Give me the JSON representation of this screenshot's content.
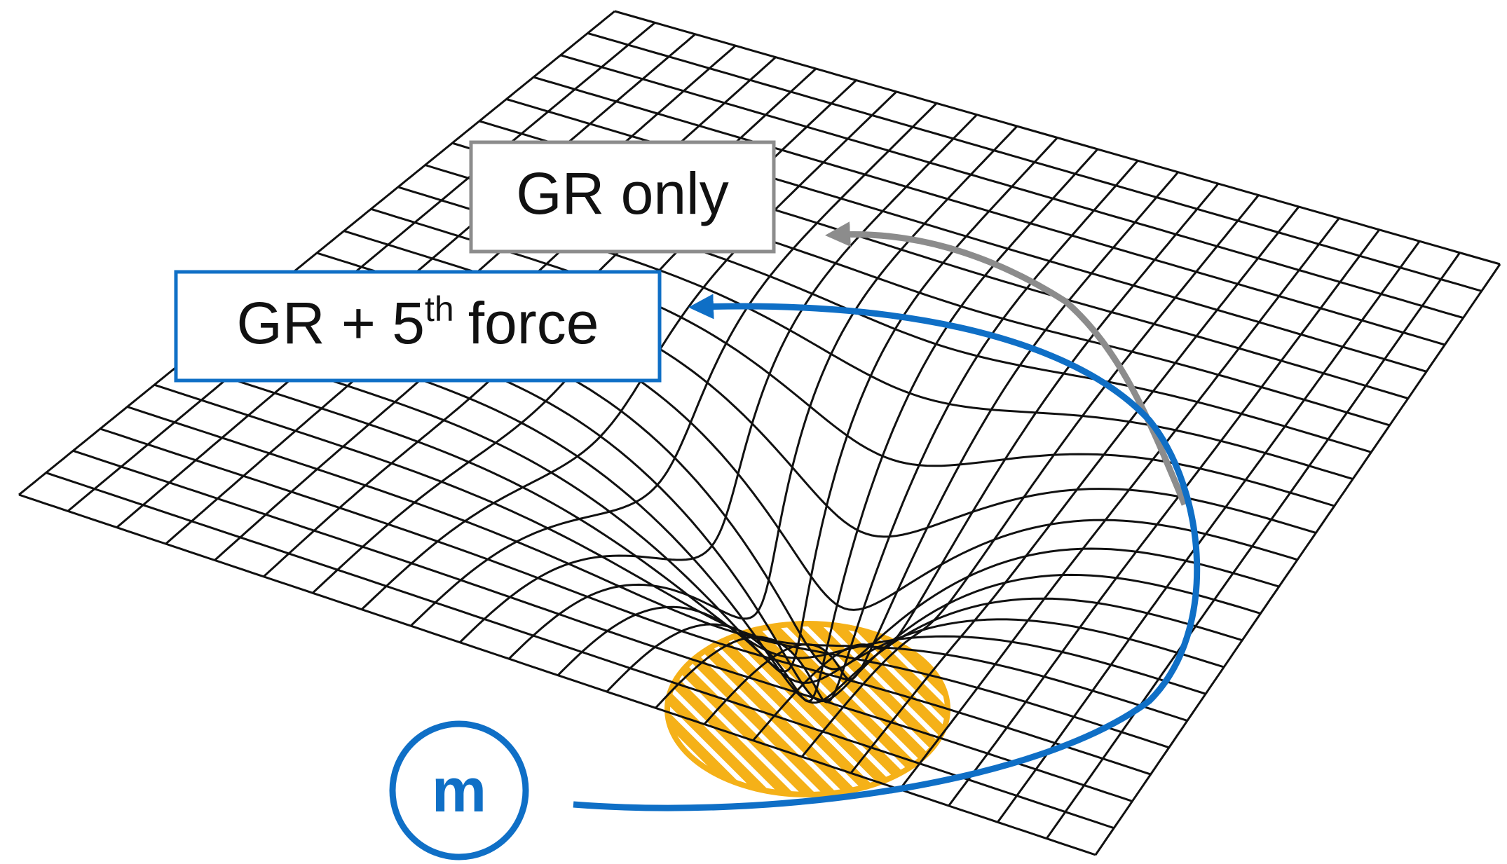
{
  "annotations": {
    "gr_only": "GR only",
    "gr_fifth": {
      "base": "GR + 5",
      "sup": "th",
      "rest": "force"
    }
  },
  "mass_label": "m"
}
